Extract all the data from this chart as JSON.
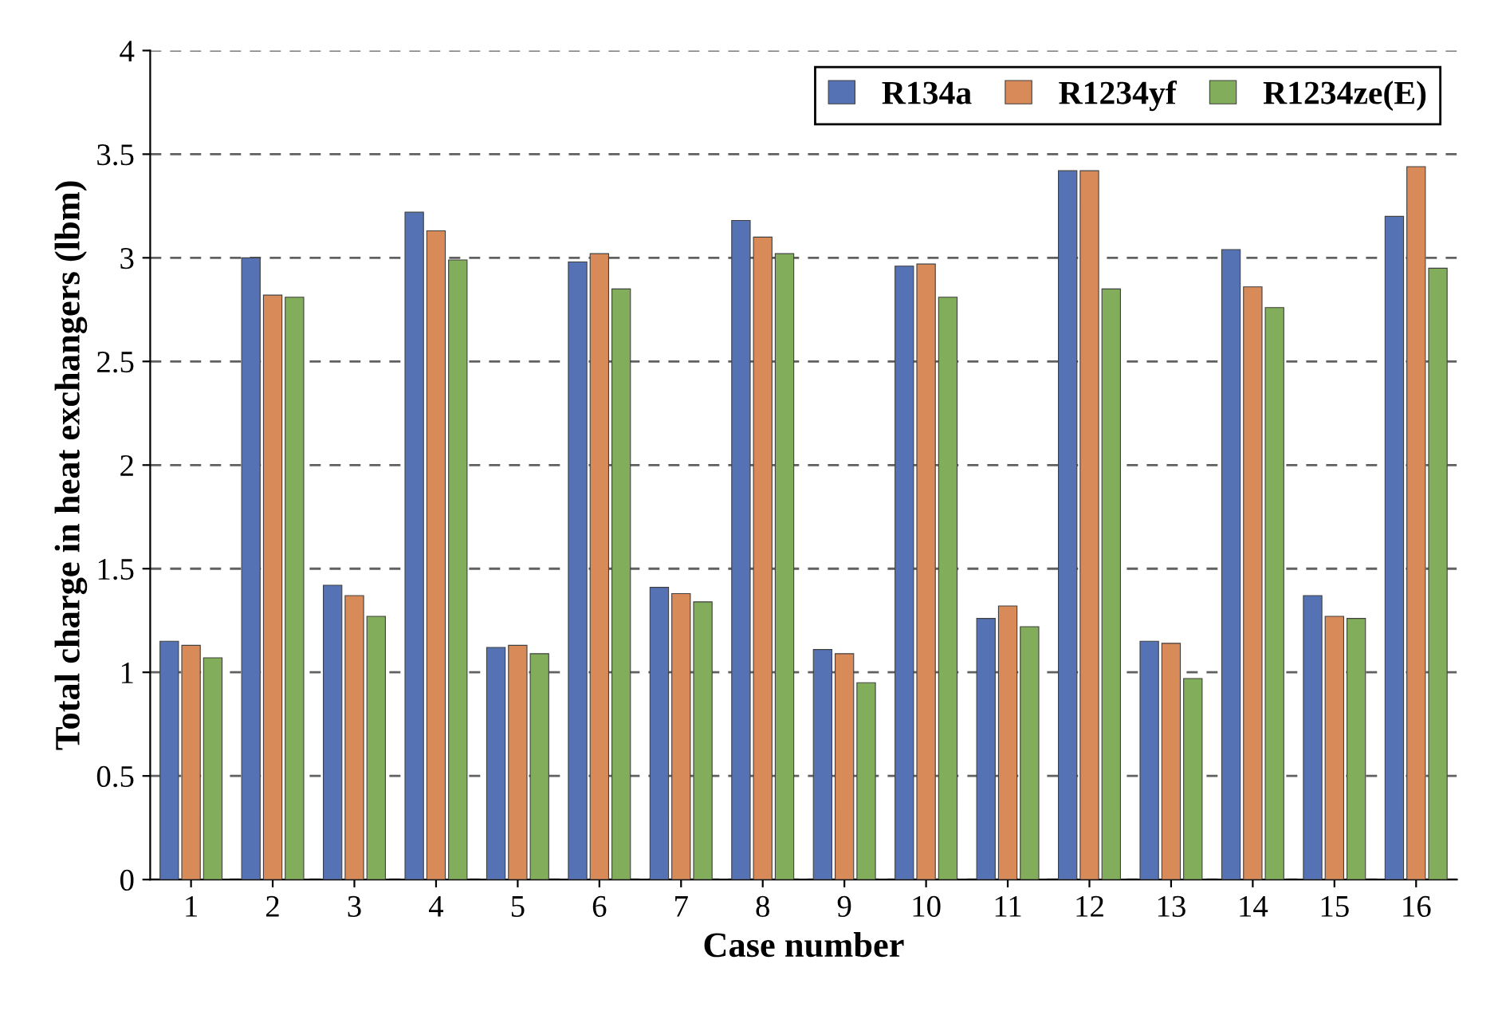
{
  "chart_data": {
    "type": "bar",
    "xlabel": "Case number",
    "ylabel": "Total charge in heat exchangers (lbm)",
    "categories": [
      "1",
      "2",
      "3",
      "4",
      "5",
      "6",
      "7",
      "8",
      "9",
      "10",
      "11",
      "12",
      "13",
      "14",
      "15",
      "16"
    ],
    "series": [
      {
        "name": "R134a",
        "color": "#5472b4",
        "values": [
          1.15,
          3.0,
          1.42,
          3.22,
          1.12,
          2.98,
          1.41,
          3.18,
          1.11,
          2.96,
          1.26,
          3.42,
          1.15,
          3.04,
          1.37,
          3.2
        ]
      },
      {
        "name": "R1234yf",
        "color": "#d88a58",
        "values": [
          1.13,
          2.82,
          1.37,
          3.13,
          1.13,
          3.02,
          1.38,
          3.1,
          1.09,
          2.97,
          1.32,
          3.42,
          1.14,
          2.86,
          1.27,
          3.44
        ]
      },
      {
        "name": "R1234ze(E)",
        "color": "#82ad5a",
        "values": [
          1.07,
          2.81,
          1.27,
          2.99,
          1.09,
          2.85,
          1.34,
          3.02,
          0.95,
          2.81,
          1.22,
          2.85,
          0.97,
          2.76,
          1.26,
          2.95
        ]
      }
    ],
    "ylim": [
      0,
      4
    ],
    "yticks": [
      0,
      0.5,
      1,
      1.5,
      2,
      2.5,
      3,
      3.5,
      4
    ],
    "grid": "y",
    "legend": "top right"
  }
}
